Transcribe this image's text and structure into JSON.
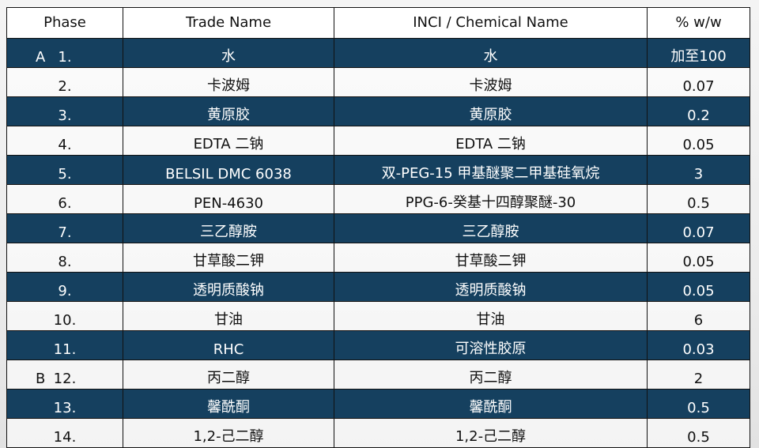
{
  "colors": {
    "dark_row": "#15405f",
    "light_row": "#f5f5f5"
  },
  "headers": [
    "Phase",
    "Trade Name",
    "INCI / Chemical Name",
    "% w/w"
  ],
  "rows": [
    {
      "group": "A",
      "no": "1.",
      "trade": "水",
      "inci": "水",
      "pct": "加至100"
    },
    {
      "group": "",
      "no": "2.",
      "trade": "卡波姆",
      "inci": "卡波姆",
      "pct": "0.07"
    },
    {
      "group": "",
      "no": "3.",
      "trade": "黄原胶",
      "inci": "黄原胶",
      "pct": "0.2"
    },
    {
      "group": "",
      "no": "4.",
      "trade": "EDTA 二钠",
      "inci": "EDTA 二钠",
      "pct": "0.05"
    },
    {
      "group": "",
      "no": "5.",
      "trade": "BELSIL DMC 6038",
      "inci": "双-PEG-15 甲基醚聚二甲基硅氧烷",
      "pct": "3"
    },
    {
      "group": "",
      "no": "6.",
      "trade": "PEN-4630",
      "inci": "PPG-6-癸基十四醇聚醚-30",
      "pct": "0.5"
    },
    {
      "group": "",
      "no": "7.",
      "trade": "三乙醇胺",
      "inci": "三乙醇胺",
      "pct": "0.07"
    },
    {
      "group": "",
      "no": "8.",
      "trade": "甘草酸二钾",
      "inci": "甘草酸二钾",
      "pct": "0.05"
    },
    {
      "group": "",
      "no": "9.",
      "trade": "透明质酸钠",
      "inci": "透明质酸钠",
      "pct": "0.05"
    },
    {
      "group": "",
      "no": "10.",
      "trade": "甘油",
      "inci": "甘油",
      "pct": "6"
    },
    {
      "group": "",
      "no": "11.",
      "trade": "RHC",
      "inci": "可溶性胶原",
      "pct": "0.03"
    },
    {
      "group": "B",
      "no": "12.",
      "trade": "丙二醇",
      "inci": "丙二醇",
      "pct": "2"
    },
    {
      "group": "",
      "no": "13.",
      "trade": "馨酰酮",
      "inci": "馨酰酮",
      "pct": "0.5"
    },
    {
      "group": "",
      "no": "14.",
      "trade": "1,2-己二醇",
      "inci": "1,2-己二醇",
      "pct": "0.5"
    }
  ]
}
